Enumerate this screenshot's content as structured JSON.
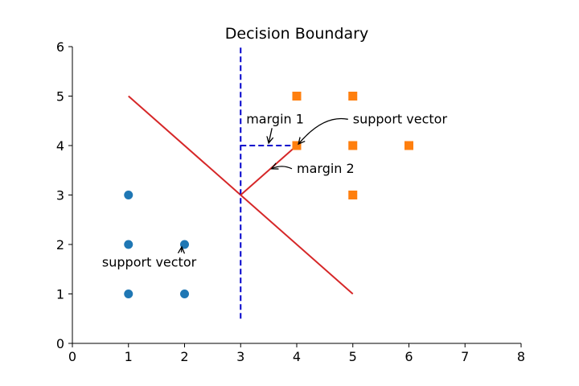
{
  "chart_data": {
    "type": "scatter",
    "title": "Decision Boundary",
    "xlabel": "",
    "ylabel": "",
    "xlim": [
      0,
      8
    ],
    "ylim": [
      0,
      6
    ],
    "xticks": [
      0,
      1,
      2,
      3,
      4,
      5,
      6,
      7,
      8
    ],
    "yticks": [
      0,
      1,
      2,
      3,
      4,
      5,
      6
    ],
    "grid": false,
    "series": [
      {
        "marker": "circle",
        "color": "#1f77b4",
        "points": [
          [
            1,
            1
          ],
          [
            1,
            2
          ],
          [
            1,
            3
          ],
          [
            2,
            1
          ],
          [
            2,
            2
          ]
        ]
      },
      {
        "marker": "square",
        "color": "#ff7f0e",
        "points": [
          [
            4,
            4
          ],
          [
            4,
            5
          ],
          [
            5,
            3
          ],
          [
            5,
            4
          ],
          [
            5,
            5
          ],
          [
            6,
            4
          ]
        ]
      }
    ],
    "lines": [
      {
        "style": "solid",
        "color": "#d62728",
        "points": [
          [
            1,
            5
          ],
          [
            5,
            1
          ]
        ]
      },
      {
        "style": "dashed",
        "color": "#0000cc",
        "points": [
          [
            3,
            0.5
          ],
          [
            3,
            6
          ]
        ]
      },
      {
        "style": "dashed",
        "color": "#0000cc",
        "points": [
          [
            3,
            4
          ],
          [
            4,
            4
          ]
        ]
      },
      {
        "style": "solid",
        "color": "#d62728",
        "points": [
          [
            3,
            3
          ],
          [
            4,
            4
          ]
        ]
      }
    ],
    "annotations": [
      {
        "text": "margin 1",
        "x": 3.1,
        "y": 4.45,
        "anchor": "start",
        "arrow_to": [
          3.5,
          4.05
        ],
        "curved": false
      },
      {
        "text": "support vector",
        "x": 5.0,
        "y": 4.45,
        "anchor": "start",
        "arrow_to": [
          4.03,
          4.03
        ],
        "curved": true
      },
      {
        "text": "margin 2",
        "x": 4.0,
        "y": 3.45,
        "anchor": "start",
        "arrow_to": [
          3.55,
          3.53
        ],
        "curved": true
      },
      {
        "text": "support vector",
        "x": 1.37,
        "y": 1.55,
        "anchor": "middle",
        "arrow_to": [
          1.95,
          1.95
        ],
        "curved": false
      }
    ]
  }
}
